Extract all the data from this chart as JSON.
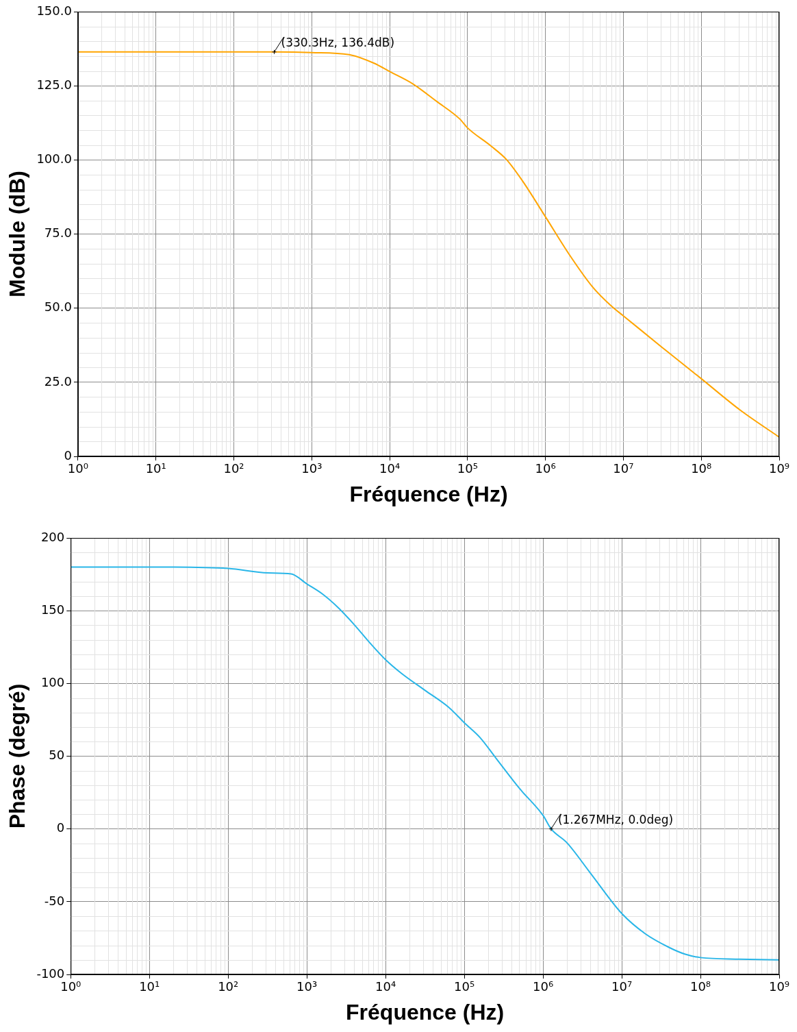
{
  "chart_data": [
    {
      "type": "line",
      "xlabel": "Fréquence (Hz)",
      "ylabel": "Module (dB)",
      "log": "x",
      "grid": true,
      "legend": false,
      "marker": "none",
      "line_style": "solid",
      "xlim": [
        1,
        1000000000
      ],
      "xticks": [
        {
          "value": 1,
          "label": "10⁰"
        },
        {
          "value": 10,
          "label": "10¹"
        },
        {
          "value": 100,
          "label": "10²"
        },
        {
          "value": 1000,
          "label": "10³"
        },
        {
          "value": 10000,
          "label": "10⁴"
        },
        {
          "value": 100000,
          "label": "10⁵"
        },
        {
          "value": 1000000,
          "label": "10⁶"
        },
        {
          "value": 10000000,
          "label": "10⁷"
        },
        {
          "value": 100000000,
          "label": "10⁸"
        },
        {
          "value": 1000000000,
          "label": "10⁹"
        }
      ],
      "ylim": [
        0,
        150
      ],
      "yticks": [
        0,
        {
          "value": 25,
          "label": "25.0"
        },
        {
          "value": 50,
          "label": "50.0"
        },
        {
          "value": 75,
          "label": "75.0"
        },
        {
          "value": 100,
          "label": "100.0"
        },
        {
          "value": 125,
          "label": "125.0"
        },
        {
          "value": 150,
          "label": "150.0"
        }
      ],
      "series": [
        {
          "color": "#ffa500",
          "x": [
            1,
            10,
            100,
            330.3,
            1000,
            3162,
            6310,
            10000,
            19950,
            39810,
            79430,
            100000,
            199500,
            316200,
            501200,
            1000000,
            1995000,
            3981000,
            7079000,
            10000000,
            31620000,
            100000000,
            316200000,
            1000000000
          ],
          "values": [
            136.4,
            136.4,
            136.4,
            136.4,
            136.2,
            135.4,
            132.6,
            129.8,
            125.6,
            119.8,
            113.8,
            110.8,
            104.7,
            100.1,
            93.1,
            80.8,
            68.3,
            57.3,
            50.6,
            47.4,
            36.7,
            26.2,
            15.6,
            6.5
          ]
        }
      ],
      "annotations": [
        {
          "text": "(330.3Hz, 136.4dB)",
          "x": 330.3,
          "y": 136.4
        }
      ]
    },
    {
      "type": "line",
      "xlabel": "Fréquence (Hz)",
      "ylabel": "Phase (degré)",
      "log": "x",
      "grid": true,
      "legend": false,
      "marker": "none",
      "line_style": "solid",
      "xlim": [
        1,
        1000000000
      ],
      "xticks": [
        {
          "value": 1,
          "label": "10⁰"
        },
        {
          "value": 10,
          "label": "10¹"
        },
        {
          "value": 100,
          "label": "10²"
        },
        {
          "value": 1000,
          "label": "10³"
        },
        {
          "value": 10000,
          "label": "10⁴"
        },
        {
          "value": 100000,
          "label": "10⁵"
        },
        {
          "value": 1000000,
          "label": "10⁶"
        },
        {
          "value": 10000000,
          "label": "10⁷"
        },
        {
          "value": 100000000,
          "label": "10⁸"
        },
        {
          "value": 1000000000,
          "label": "10⁹"
        }
      ],
      "ylim": [
        -100,
        200
      ],
      "yticks": [
        -100,
        -50,
        0,
        50,
        100,
        150,
        200
      ],
      "series": [
        {
          "color": "#29b6e8",
          "x": [
            1,
            10,
            100,
            316.2,
            631,
            1000,
            1585,
            2512,
            3981,
            6310,
            10000,
            15850,
            31620,
            63100,
            100000,
            158500,
            251200,
            501200,
            1000000,
            1267000,
            1995000,
            3981000,
            10000000,
            19950000,
            39810000,
            63100000,
            100000000,
            316200000,
            1000000000
          ],
          "values": [
            180,
            180,
            179,
            176,
            175.3,
            168.4,
            161.4,
            152,
            140.5,
            127.9,
            116.3,
            107,
            95.3,
            83.7,
            73,
            62.8,
            48.8,
            27.9,
            9.3,
            0,
            -9.3,
            -30.2,
            -58.1,
            -72.1,
            -81.4,
            -86,
            -88.4,
            -89.5,
            -90
          ]
        }
      ],
      "annotations": [
        {
          "text": "(1.267MHz, 0.0deg)",
          "x": 1267000,
          "y": 0
        }
      ]
    }
  ]
}
